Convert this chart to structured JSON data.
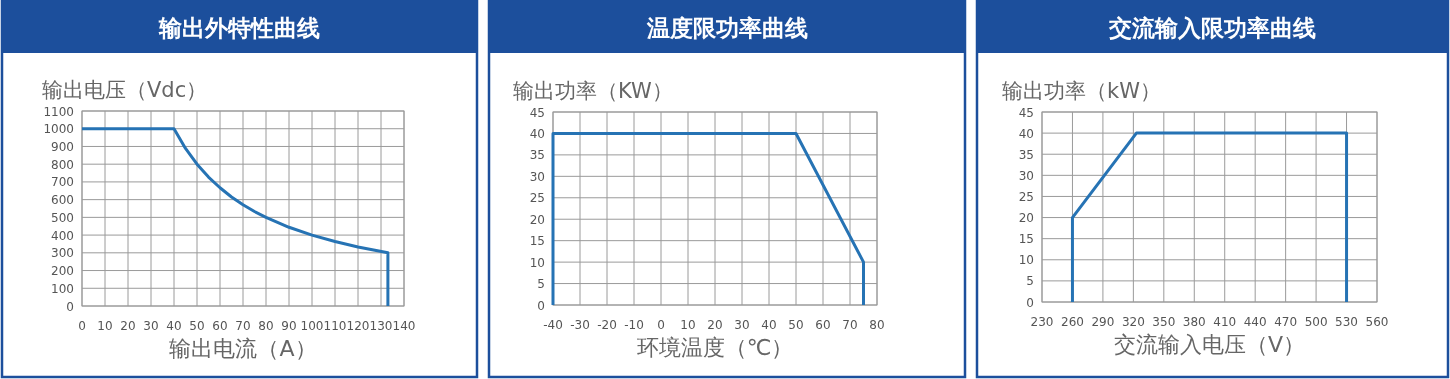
{
  "chart_data": [
    {
      "type": "line",
      "title": "输出外特性曲线",
      "ylabel": "输出电压（Vdc）",
      "xlabel": "输出电流（A）",
      "xlim": [
        0,
        140
      ],
      "ylim": [
        0,
        1100
      ],
      "xticks": [
        0,
        10,
        20,
        30,
        40,
        50,
        60,
        70,
        80,
        90,
        100,
        110,
        120,
        130,
        140
      ],
      "yticks": [
        0,
        100,
        200,
        300,
        400,
        500,
        600,
        700,
        800,
        900,
        1000,
        1100
      ],
      "grid": true,
      "x": [
        0,
        40,
        45,
        50,
        55,
        60,
        65,
        70,
        75,
        80,
        90,
        100,
        110,
        120,
        133,
        133
      ],
      "series": [
        {
          "color": "#2673b4",
          "values": [
            1000,
            1000,
            889,
            800,
            727,
            667,
            615,
            571,
            533,
            500,
            444,
            400,
            364,
            333,
            300,
            0
          ]
        }
      ]
    },
    {
      "type": "line",
      "title": "温度限功率曲线",
      "ylabel": "输出功率（KW）",
      "xlabel": "环境温度（℃）",
      "xlim": [
        -40,
        80
      ],
      "ylim": [
        0,
        45
      ],
      "xticks": [
        -40,
        -30,
        -20,
        -10,
        0,
        10,
        20,
        30,
        40,
        50,
        60,
        70,
        80
      ],
      "yticks": [
        0,
        5,
        10,
        15,
        20,
        25,
        30,
        35,
        40,
        45
      ],
      "grid": true,
      "x": [
        -40,
        -40,
        50,
        75,
        75
      ],
      "series": [
        {
          "color": "#2673b4",
          "values": [
            0,
            40,
            40,
            10,
            0
          ]
        }
      ]
    },
    {
      "type": "line",
      "title": "交流输入限功率曲线",
      "ylabel": "输出功率（kW）",
      "xlabel": "交流输入电压（V）",
      "xlim": [
        230,
        560
      ],
      "ylim": [
        0,
        45
      ],
      "xticks": [
        230,
        260,
        290,
        320,
        350,
        380,
        410,
        440,
        470,
        500,
        530,
        560
      ],
      "yticks": [
        0,
        5,
        10,
        15,
        20,
        25,
        30,
        35,
        40,
        45
      ],
      "grid": true,
      "x": [
        260,
        260,
        323,
        530,
        530
      ],
      "series": [
        {
          "color": "#2673b4",
          "values": [
            0,
            20,
            40,
            40,
            0
          ]
        }
      ]
    }
  ]
}
